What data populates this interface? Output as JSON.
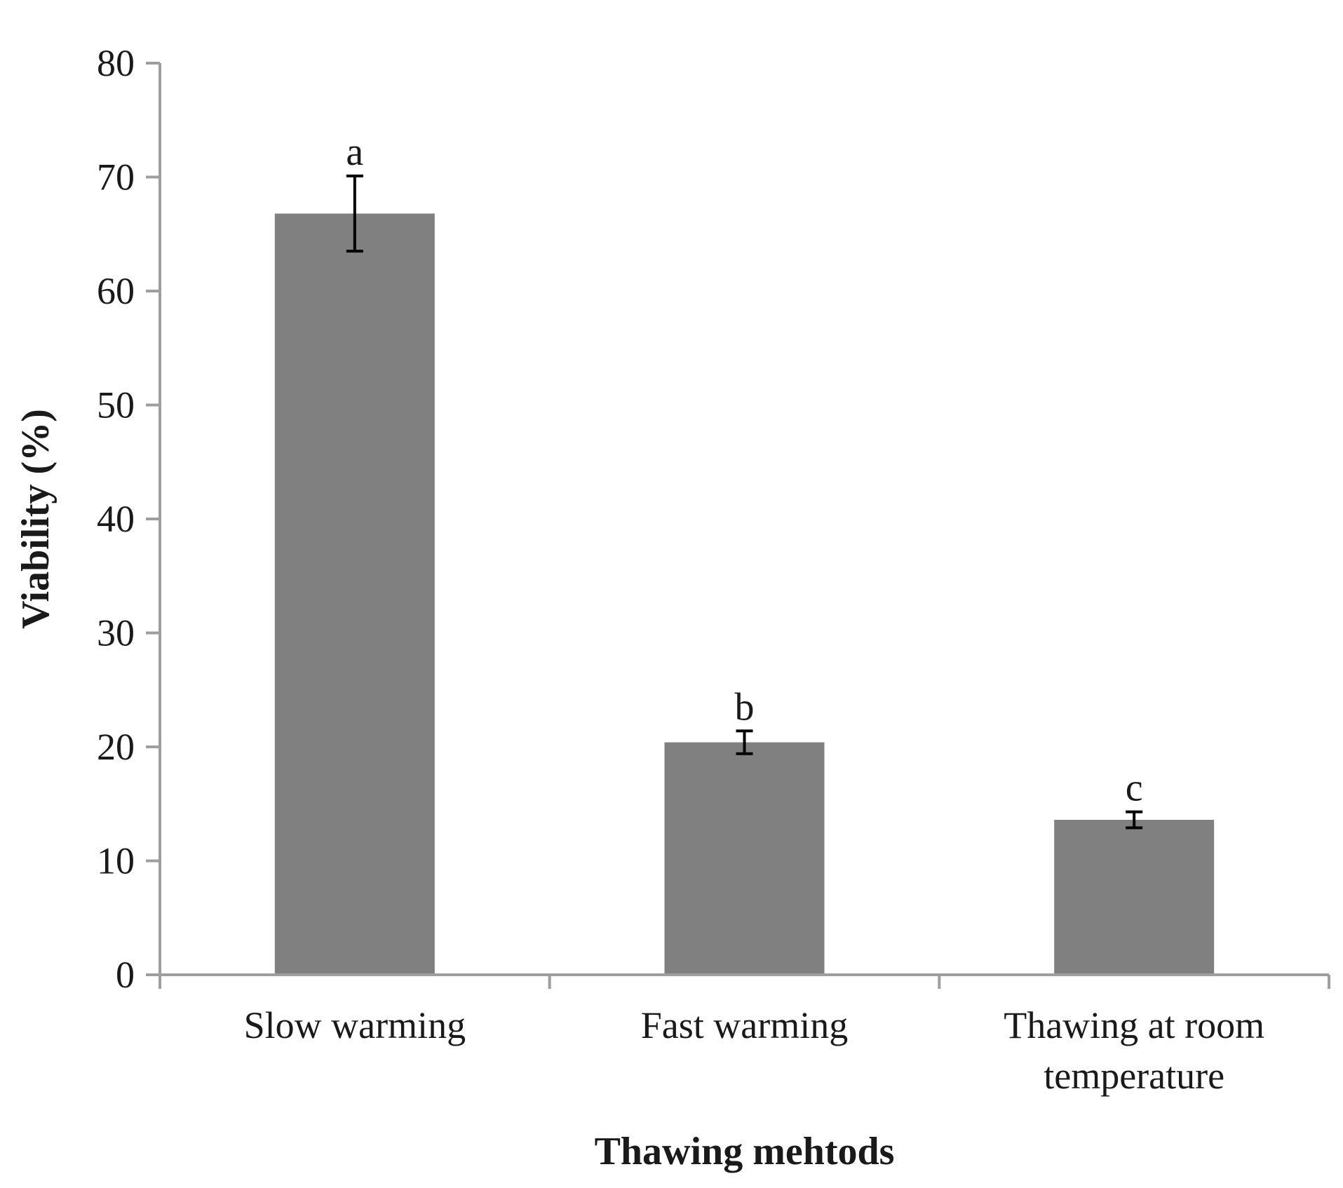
{
  "chart_data": {
    "type": "bar",
    "title": "",
    "xlabel": "Thawing mehtods",
    "ylabel": "Viability (%)",
    "ylim": [
      0,
      80
    ],
    "yticks": [
      0,
      10,
      20,
      30,
      40,
      50,
      60,
      70,
      80
    ],
    "grid": false,
    "legend": "none",
    "categories": [
      [
        "Slow warming"
      ],
      [
        "Fast warming"
      ],
      [
        "Thawing at room",
        "temperature"
      ]
    ],
    "values": [
      66.8,
      20.4,
      13.6
    ],
    "error": [
      3.3,
      1.0,
      0.7
    ],
    "significance_letters": [
      "a",
      "b",
      "c"
    ],
    "bar_color": "#808080",
    "axis_color": "#9e9e9e",
    "error_bar_color": "#000000"
  }
}
